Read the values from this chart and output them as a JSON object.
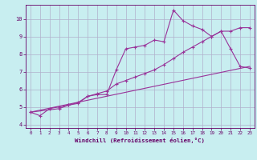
{
  "background_color": "#c8eef0",
  "grid_color": "#b0b0cc",
  "line_color": "#993399",
  "xlabel": "Windchill (Refroidissement éolien,°C)",
  "xlabel_color": "#660066",
  "tick_color": "#660066",
  "xlim": [
    -0.5,
    23.5
  ],
  "ylim": [
    3.8,
    10.8
  ],
  "yticks": [
    4,
    5,
    6,
    7,
    8,
    9,
    10
  ],
  "xticks": [
    0,
    1,
    2,
    3,
    4,
    5,
    6,
    7,
    8,
    9,
    10,
    11,
    12,
    13,
    14,
    15,
    16,
    17,
    18,
    19,
    20,
    21,
    22,
    23
  ],
  "line1_x": [
    0,
    1,
    2,
    3,
    4,
    5,
    6,
    7,
    8,
    9,
    10,
    11,
    12,
    13,
    14,
    15,
    16,
    17,
    18,
    19,
    20,
    21,
    22,
    23
  ],
  "line1_y": [
    4.7,
    4.5,
    4.9,
    5.0,
    5.1,
    5.2,
    5.6,
    5.7,
    5.7,
    7.1,
    8.3,
    8.4,
    8.5,
    8.8,
    8.7,
    10.5,
    9.9,
    9.6,
    9.4,
    9.0,
    9.3,
    8.3,
    7.3,
    7.2
  ],
  "line2_x": [
    0,
    3,
    4,
    5,
    6,
    7,
    8,
    9,
    10,
    11,
    12,
    13,
    14,
    15,
    16,
    17,
    18,
    19,
    20,
    21,
    22,
    23
  ],
  "line2_y": [
    4.7,
    4.9,
    5.1,
    5.25,
    5.6,
    5.75,
    5.9,
    6.3,
    6.5,
    6.7,
    6.9,
    7.1,
    7.4,
    7.75,
    8.1,
    8.4,
    8.7,
    9.0,
    9.3,
    9.3,
    9.5,
    9.5
  ],
  "line3_x": [
    0,
    23
  ],
  "line3_y": [
    4.7,
    7.3
  ]
}
